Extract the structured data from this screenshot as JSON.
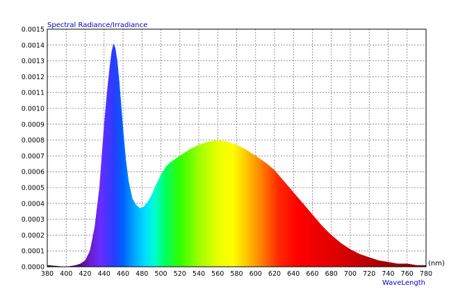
{
  "chart_data": {
    "type": "area",
    "ylabel": "Spectral Radiance/Irradiance",
    "xlabel": "WaveLength",
    "x_unit": "(nm)",
    "xlim": [
      380,
      780
    ],
    "ylim": [
      0,
      0.0015
    ],
    "grid": true,
    "x_ticks": [
      380,
      400,
      420,
      440,
      460,
      480,
      500,
      520,
      540,
      560,
      580,
      600,
      620,
      640,
      660,
      680,
      700,
      720,
      740,
      760,
      780
    ],
    "y_ticks": [
      "0.0000",
      "0.0001",
      "0.0002",
      "0.0003",
      "0.0004",
      "0.0005",
      "0.0006",
      "0.0007",
      "0.0008",
      "0.0009",
      "0.0010",
      "0.0011",
      "0.0012",
      "0.0013",
      "0.0014",
      "0.0015"
    ],
    "series": [
      {
        "x": [
          380,
          400,
          410,
          415,
          420,
          425,
          430,
          435,
          440,
          443,
          446,
          448,
          450,
          452,
          454,
          456,
          458,
          460,
          463,
          466,
          470,
          474,
          478,
          482,
          486,
          490,
          495,
          500,
          505,
          510,
          520,
          530,
          540,
          550,
          560,
          570,
          580,
          590,
          600,
          610,
          620,
          630,
          640,
          650,
          660,
          670,
          680,
          690,
          700,
          710,
          720,
          730,
          740,
          750,
          760,
          770,
          780
        ],
        "y": [
          1e-05,
          0.0,
          1e-05,
          2e-05,
          4e-05,
          0.0001,
          0.00025,
          0.0005,
          0.0009,
          0.0011,
          0.00127,
          0.00136,
          0.00141,
          0.00138,
          0.0013,
          0.00118,
          0.00103,
          0.00088,
          0.00068,
          0.00054,
          0.00043,
          0.00039,
          0.00037,
          0.00038,
          0.00041,
          0.00045,
          0.00052,
          0.00058,
          0.00063,
          0.00066,
          0.0007,
          0.00074,
          0.00077,
          0.00079,
          0.0008,
          0.00079,
          0.00077,
          0.00074,
          0.0007,
          0.00066,
          0.00061,
          0.00054,
          0.00047,
          0.0004,
          0.00033,
          0.00026,
          0.0002,
          0.00015,
          0.00011,
          8e-05,
          6e-05,
          4e-05,
          3e-05,
          2e-05,
          2e-05,
          1e-05,
          1e-05
        ]
      }
    ]
  }
}
